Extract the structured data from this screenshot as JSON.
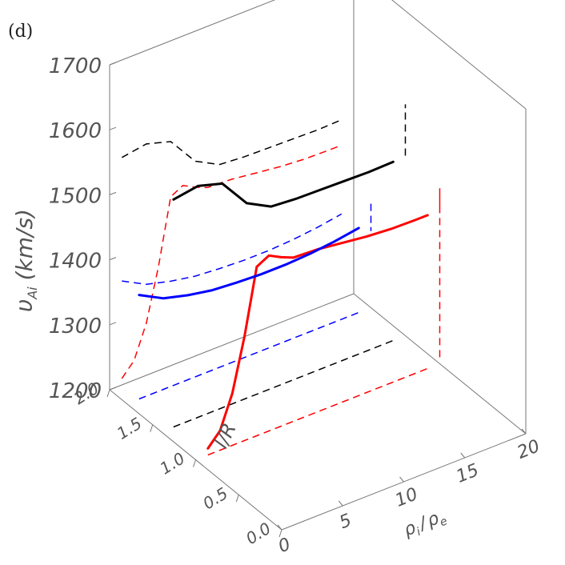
{
  "panel_label": "(d)",
  "chart_data": {
    "type": "line",
    "projection": "3d",
    "xlabel": "ρ_i / ρ_e",
    "xlabel_main": "ρ",
    "xlabel_sub_i": "i",
    "xlabel_slash": "/",
    "xlabel_sub_e": "e",
    "ylabel": "l/R",
    "zlabel": "υ_Ai (km/s)",
    "zlabel_main": "υ",
    "zlabel_sub": "Ai",
    "zlabel_unit": "(km/s)",
    "xlim": [
      0,
      20
    ],
    "ylim": [
      0,
      2
    ],
    "zlim": [
      1200,
      1700
    ],
    "x_ticks": [
      "0",
      "5",
      "10",
      "15",
      "20"
    ],
    "y_ticks": [
      "0.0",
      "0.5",
      "1.0",
      "1.5",
      "2.0"
    ],
    "z_ticks": [
      "1200",
      "1300",
      "1400",
      "1500",
      "1600",
      "1700"
    ],
    "grid": false,
    "series": [
      {
        "color": "#000000",
        "x": [
          1,
          3,
          5,
          7,
          9,
          11,
          13,
          15,
          17,
          19
        ],
        "y": [
          1.4,
          1.4,
          1.4,
          1.4,
          1.4,
          1.4,
          1.4,
          1.4,
          1.4,
          1.4
        ],
        "z": [
          1550,
          1556,
          1545,
          1500,
          1480,
          1477,
          1476,
          1475,
          1474,
          1475
        ]
      },
      {
        "color": "#ff0000",
        "x": [
          1,
          2,
          3,
          4,
          5,
          6,
          7,
          8,
          10,
          12,
          14,
          16,
          18,
          19
        ],
        "y": [
          1.0,
          1.0,
          1.0,
          1.0,
          1.0,
          1.0,
          1.0,
          1.0,
          1.0,
          1.0,
          1.0,
          1.0,
          1.0,
          1.0
        ],
        "z": [
          1210,
          1230,
          1280,
          1360,
          1460,
          1470,
          1460,
          1452,
          1450,
          1445,
          1440,
          1437,
          1436,
          1436
        ]
      },
      {
        "color": "#0000ff",
        "x": [
          1,
          3,
          5,
          7,
          9,
          11,
          13,
          15,
          17,
          19
        ],
        "y": [
          1.8,
          1.8,
          1.8,
          1.8,
          1.8,
          1.8,
          1.8,
          1.8,
          1.8,
          1.8
        ],
        "z": [
          1360,
          1340,
          1330,
          1323,
          1320,
          1318,
          1318,
          1320,
          1324,
          1330
        ]
      }
    ]
  }
}
